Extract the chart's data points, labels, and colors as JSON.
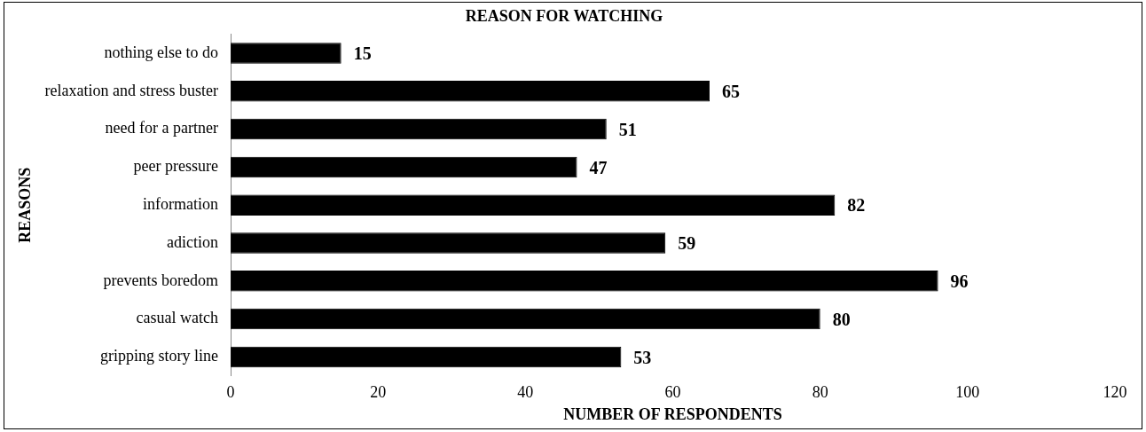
{
  "chart_data": {
    "type": "bar",
    "orientation": "horizontal",
    "title": "REASON FOR WATCHING",
    "xlabel": "NUMBER OF RESPONDENTS",
    "ylabel": "REASONS",
    "categories": [
      "nothing else to do",
      "relaxation and stress buster",
      "need for a partner",
      "peer pressure",
      "information",
      "adiction",
      "prevents boredom",
      "casual watch",
      "gripping story line"
    ],
    "values": [
      15,
      65,
      51,
      47,
      82,
      59,
      96,
      80,
      53
    ],
    "color": "#000000",
    "xlim": [
      0,
      120
    ],
    "xticks": [
      0,
      20,
      40,
      60,
      80,
      100,
      120
    ],
    "grid": false,
    "legend": false,
    "data_labels": true
  }
}
